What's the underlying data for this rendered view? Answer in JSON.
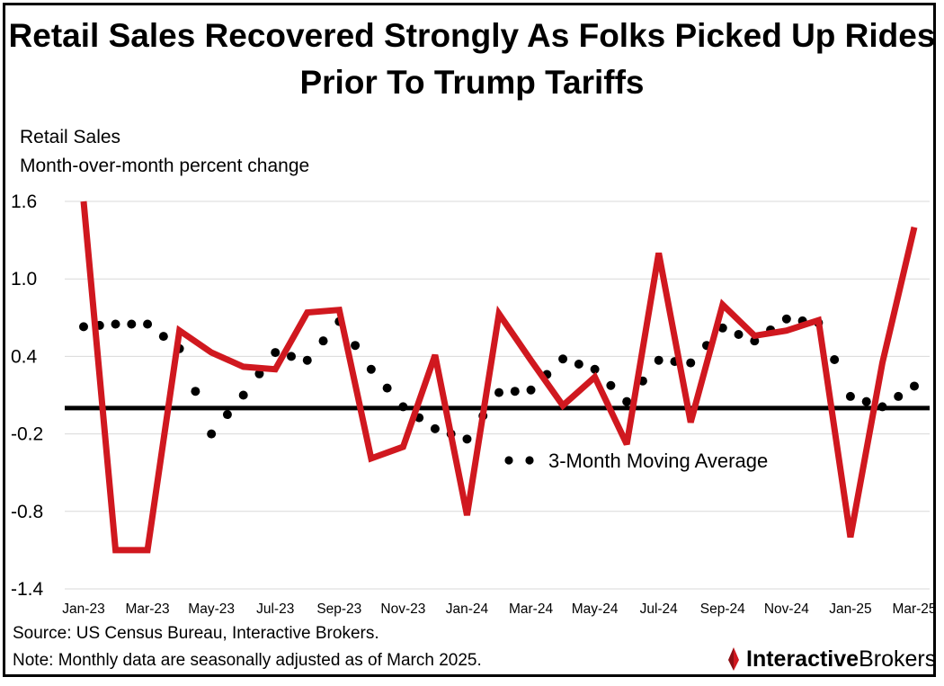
{
  "title": "Retail Sales Recovered Strongly As Folks Picked Up Rides Prior To Trump Tariffs",
  "ylabel_line1": "Retail Sales",
  "ylabel_line2": "Month-over-month percent change",
  "source": "Source: US Census Bureau, Interactive Brokers.",
  "note": "Note: Monthly data are seasonally adjusted as of March 2025.",
  "logo": {
    "part1": "Interactive",
    "part2": "Brokers"
  },
  "colors": {
    "line": "#d0181f",
    "ma": "#000000",
    "zero": "#000000",
    "grid": "#d9d9d9"
  },
  "chart_data": {
    "type": "line",
    "title": "Retail Sales Recovered Strongly As Folks Picked Up Rides Prior To Trump Tariffs",
    "ylabel": "Retail Sales Month-over-month percent change",
    "xlabel": "",
    "ylim": [
      -1.4,
      1.6
    ],
    "yticks": [
      1.6,
      1.0,
      0.4,
      -0.2,
      -0.8,
      -1.4
    ],
    "yticklabels": [
      "1.6",
      "1.0",
      "0.4",
      "-0.2",
      "-0.8",
      "-1.4"
    ],
    "categories": [
      "Jan-23",
      "Feb-23",
      "Mar-23",
      "Apr-23",
      "May-23",
      "Jun-23",
      "Jul-23",
      "Aug-23",
      "Sep-23",
      "Oct-23",
      "Nov-23",
      "Dec-23",
      "Jan-24",
      "Feb-24",
      "Mar-24",
      "Apr-24",
      "May-24",
      "Jun-24",
      "Jul-24",
      "Aug-24",
      "Sep-24",
      "Oct-24",
      "Nov-24",
      "Dec-24",
      "Jan-25",
      "Feb-25",
      "Mar-25"
    ],
    "xticklabels": [
      "Jan-23",
      "Mar-23",
      "May-23",
      "Jul-23",
      "Sep-23",
      "Nov-23",
      "Jan-24",
      "Mar-24",
      "May-24",
      "Jul-24",
      "Sep-24",
      "Nov-24",
      "Jan-25",
      "Mar-25"
    ],
    "reference_line": 0.0,
    "grid": "horizontal",
    "series": [
      {
        "name": "Retail Sales",
        "style": "solid",
        "values": [
          1.6,
          -1.1,
          -1.1,
          0.6,
          0.43,
          0.32,
          0.3,
          0.74,
          0.76,
          -0.39,
          -0.3,
          0.41,
          -0.83,
          0.73,
          0.37,
          0.02,
          0.24,
          -0.28,
          1.2,
          -0.11,
          0.8,
          0.56,
          0.6,
          0.68,
          -1.0,
          0.35,
          1.4
        ]
      },
      {
        "name": "3-Month Moving Average",
        "style": "dotted",
        "legend_position": "center-right",
        "values": [
          0.63,
          0.65,
          0.65,
          0.46,
          -0.2,
          0.1,
          0.43,
          0.37,
          0.67,
          0.3,
          0.01,
          -0.16,
          -0.24,
          0.12,
          0.14,
          0.38,
          0.3,
          0.05,
          0.37,
          0.35,
          0.62,
          0.52,
          0.69,
          0.66,
          0.09,
          0.01,
          0.17
        ]
      }
    ]
  }
}
